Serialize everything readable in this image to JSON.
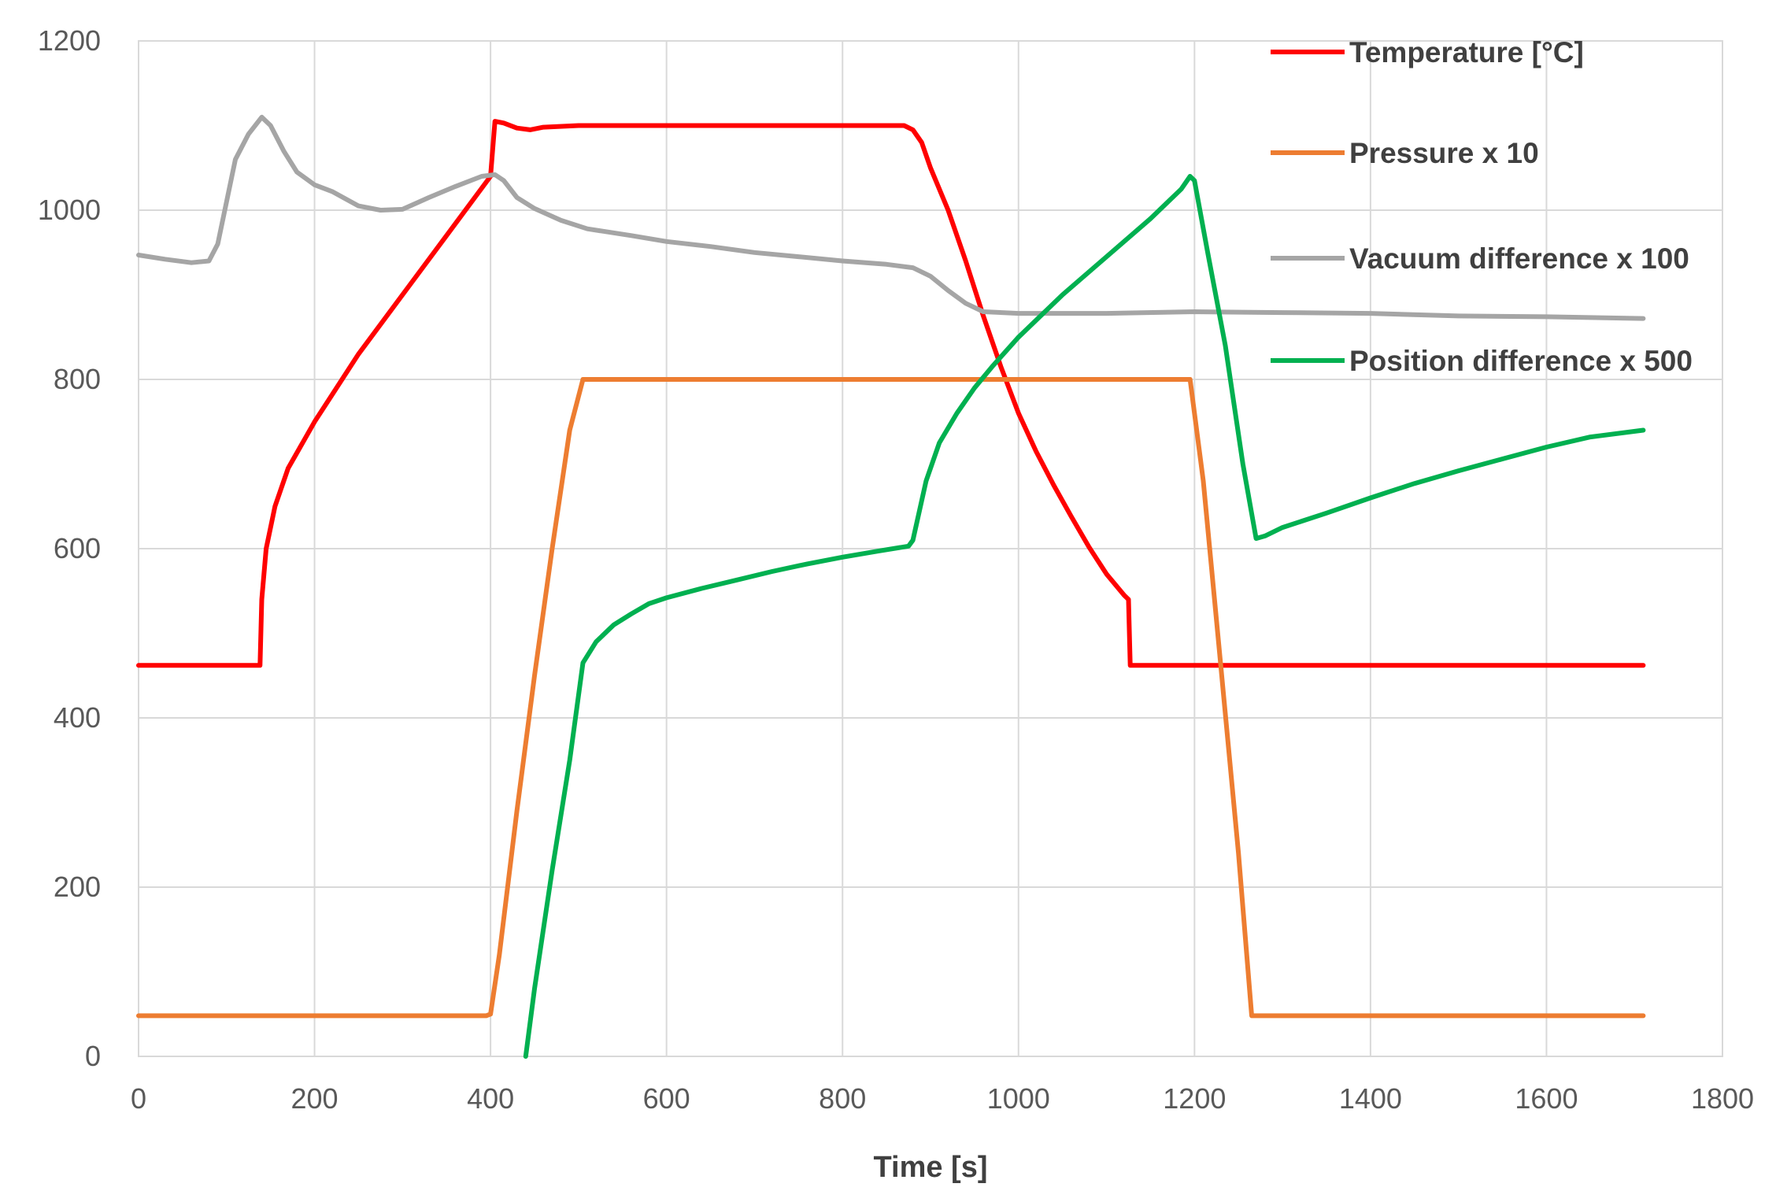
{
  "chart_data": {
    "type": "line",
    "title": "",
    "xlabel": "Time [s]",
    "ylabel": "",
    "xlim": [
      0,
      1800
    ],
    "ylim": [
      0,
      1200
    ],
    "x_ticks": [
      0,
      200,
      400,
      600,
      800,
      1000,
      1200,
      1400,
      1600,
      1800
    ],
    "y_ticks": [
      0,
      200,
      400,
      600,
      800,
      1000,
      1200
    ],
    "grid": true,
    "legend_position": "top-right",
    "series": [
      {
        "name": "Temperature [°C]",
        "color": "#ff0000",
        "points": [
          [
            0,
            462
          ],
          [
            138,
            462
          ],
          [
            140,
            540
          ],
          [
            145,
            600
          ],
          [
            155,
            650
          ],
          [
            170,
            695
          ],
          [
            200,
            750
          ],
          [
            250,
            830
          ],
          [
            300,
            900
          ],
          [
            350,
            970
          ],
          [
            400,
            1040
          ],
          [
            405,
            1105
          ],
          [
            415,
            1103
          ],
          [
            430,
            1097
          ],
          [
            445,
            1095
          ],
          [
            460,
            1098
          ],
          [
            500,
            1100
          ],
          [
            600,
            1100
          ],
          [
            700,
            1100
          ],
          [
            800,
            1100
          ],
          [
            870,
            1100
          ],
          [
            880,
            1095
          ],
          [
            890,
            1080
          ],
          [
            900,
            1050
          ],
          [
            920,
            1000
          ],
          [
            940,
            940
          ],
          [
            960,
            875
          ],
          [
            980,
            815
          ],
          [
            1000,
            760
          ],
          [
            1020,
            715
          ],
          [
            1040,
            675
          ],
          [
            1060,
            638
          ],
          [
            1080,
            602
          ],
          [
            1100,
            570
          ],
          [
            1120,
            545
          ],
          [
            1125,
            540
          ],
          [
            1127,
            462
          ],
          [
            1400,
            462
          ],
          [
            1710,
            462
          ]
        ]
      },
      {
        "name": "Pressure x 10",
        "color": "#ed7d31",
        "points": [
          [
            0,
            48
          ],
          [
            395,
            48
          ],
          [
            400,
            50
          ],
          [
            410,
            120
          ],
          [
            430,
            290
          ],
          [
            450,
            450
          ],
          [
            470,
            600
          ],
          [
            490,
            740
          ],
          [
            505,
            800
          ],
          [
            520,
            800
          ],
          [
            700,
            800
          ],
          [
            900,
            800
          ],
          [
            1100,
            800
          ],
          [
            1190,
            800
          ],
          [
            1195,
            800
          ],
          [
            1210,
            680
          ],
          [
            1230,
            460
          ],
          [
            1250,
            240
          ],
          [
            1265,
            48
          ],
          [
            1270,
            48
          ],
          [
            1500,
            48
          ],
          [
            1710,
            48
          ]
        ]
      },
      {
        "name": "Vacuum difference x 100",
        "color": "#a5a5a5",
        "points": [
          [
            0,
            947
          ],
          [
            30,
            942
          ],
          [
            60,
            938
          ],
          [
            80,
            940
          ],
          [
            90,
            960
          ],
          [
            100,
            1010
          ],
          [
            110,
            1060
          ],
          [
            125,
            1090
          ],
          [
            140,
            1110
          ],
          [
            150,
            1100
          ],
          [
            165,
            1070
          ],
          [
            180,
            1045
          ],
          [
            200,
            1030
          ],
          [
            220,
            1022
          ],
          [
            250,
            1005
          ],
          [
            275,
            1000
          ],
          [
            300,
            1001
          ],
          [
            330,
            1015
          ],
          [
            360,
            1028
          ],
          [
            390,
            1040
          ],
          [
            405,
            1042
          ],
          [
            415,
            1035
          ],
          [
            430,
            1015
          ],
          [
            450,
            1002
          ],
          [
            480,
            988
          ],
          [
            510,
            978
          ],
          [
            560,
            970
          ],
          [
            600,
            963
          ],
          [
            650,
            957
          ],
          [
            700,
            950
          ],
          [
            750,
            945
          ],
          [
            800,
            940
          ],
          [
            850,
            936
          ],
          [
            880,
            932
          ],
          [
            900,
            922
          ],
          [
            920,
            905
          ],
          [
            940,
            890
          ],
          [
            960,
            880
          ],
          [
            1000,
            878
          ],
          [
            1100,
            878
          ],
          [
            1200,
            880
          ],
          [
            1300,
            879
          ],
          [
            1400,
            878
          ],
          [
            1500,
            875
          ],
          [
            1600,
            874
          ],
          [
            1710,
            872
          ]
        ]
      },
      {
        "name": "Position difference x 500",
        "color": "#00b050",
        "points": [
          [
            440,
            0
          ],
          [
            450,
            80
          ],
          [
            470,
            220
          ],
          [
            490,
            350
          ],
          [
            505,
            465
          ],
          [
            520,
            490
          ],
          [
            540,
            510
          ],
          [
            560,
            523
          ],
          [
            580,
            535
          ],
          [
            600,
            542
          ],
          [
            640,
            553
          ],
          [
            680,
            563
          ],
          [
            720,
            573
          ],
          [
            760,
            582
          ],
          [
            800,
            590
          ],
          [
            840,
            597
          ],
          [
            875,
            603
          ],
          [
            880,
            610
          ],
          [
            895,
            680
          ],
          [
            910,
            725
          ],
          [
            930,
            760
          ],
          [
            950,
            790
          ],
          [
            970,
            815
          ],
          [
            1000,
            850
          ],
          [
            1050,
            900
          ],
          [
            1100,
            945
          ],
          [
            1150,
            990
          ],
          [
            1185,
            1025
          ],
          [
            1195,
            1040
          ],
          [
            1200,
            1035
          ],
          [
            1215,
            950
          ],
          [
            1235,
            840
          ],
          [
            1255,
            700
          ],
          [
            1270,
            612
          ],
          [
            1280,
            615
          ],
          [
            1300,
            625
          ],
          [
            1350,
            642
          ],
          [
            1400,
            660
          ],
          [
            1450,
            677
          ],
          [
            1500,
            692
          ],
          [
            1550,
            706
          ],
          [
            1600,
            720
          ],
          [
            1650,
            732
          ],
          [
            1710,
            740
          ]
        ]
      }
    ]
  }
}
